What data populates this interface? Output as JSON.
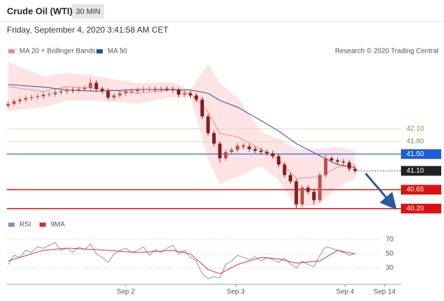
{
  "header": {
    "title": "Crude Oil (WTI)",
    "timeframe": "30 MIN",
    "datetime": "Friday, September 4, 2020 3:41:58 AM CET",
    "source": "Research © 2020 Trading Central"
  },
  "chart_data": [
    {
      "type": "candlestick",
      "ylim": [
        40.08,
        43.77
      ],
      "xlim": [
        -0.2,
        66.8
      ],
      "up_color": "#c0504d",
      "down_color": "#8b1a1a",
      "x": [
        0,
        1,
        2,
        3,
        4,
        5,
        6,
        7,
        8,
        9,
        10,
        11,
        12,
        13,
        14,
        15,
        16,
        17,
        18,
        19,
        20,
        21,
        22,
        23,
        24,
        25,
        26,
        27,
        28,
        29,
        30,
        31,
        32,
        33,
        34,
        35,
        36,
        37,
        38,
        39,
        40,
        41,
        42,
        43,
        44,
        45,
        46,
        47,
        48,
        49,
        50,
        51,
        52,
        53,
        54,
        55,
        56,
        57,
        58,
        59
      ],
      "open": [
        42.65,
        42.7,
        42.76,
        42.8,
        42.84,
        42.86,
        42.88,
        42.92,
        42.93,
        42.97,
        43.0,
        43.03,
        43.02,
        43.05,
        43.08,
        43.2,
        43.05,
        43.0,
        42.85,
        42.9,
        42.95,
        43.0,
        43.0,
        43.03,
        43.05,
        43.05,
        43.04,
        43.06,
        43.05,
        43.03,
        42.92,
        42.95,
        42.9,
        42.8,
        42.4,
        42.0,
        41.75,
        41.4,
        41.55,
        41.6,
        41.7,
        41.68,
        41.62,
        41.58,
        41.55,
        41.52,
        41.45,
        41.25,
        41.0,
        40.85,
        40.3,
        40.7,
        40.6,
        40.4,
        41.0,
        41.4,
        41.35,
        41.32,
        41.3,
        41.15
      ],
      "high": [
        42.76,
        42.82,
        42.86,
        42.9,
        42.92,
        42.94,
        42.98,
        42.99,
        43.03,
        43.06,
        43.09,
        43.09,
        43.11,
        43.14,
        43.3,
        43.26,
        43.11,
        43.06,
        42.96,
        43.01,
        43.06,
        43.06,
        43.09,
        43.11,
        43.11,
        43.11,
        43.12,
        43.12,
        43.11,
        43.09,
        43.01,
        43.01,
        42.96,
        42.86,
        42.46,
        42.06,
        41.81,
        41.61,
        41.66,
        41.76,
        41.76,
        41.74,
        41.68,
        41.64,
        41.61,
        41.58,
        41.51,
        41.31,
        41.06,
        40.91,
        40.76,
        40.76,
        40.66,
        41.06,
        41.5,
        41.46,
        41.41,
        41.38,
        41.36,
        41.21
      ],
      "low": [
        42.59,
        42.64,
        42.7,
        42.74,
        42.78,
        42.8,
        42.82,
        42.86,
        42.87,
        42.91,
        42.94,
        42.96,
        42.96,
        42.99,
        43.02,
        42.99,
        42.94,
        42.79,
        42.79,
        42.84,
        42.89,
        42.94,
        42.94,
        42.97,
        42.99,
        42.98,
        42.98,
        42.99,
        42.97,
        42.86,
        42.86,
        42.84,
        42.74,
        42.34,
        41.94,
        41.69,
        41.3,
        41.34,
        41.49,
        41.54,
        41.62,
        41.56,
        41.52,
        41.49,
        41.46,
        41.39,
        41.19,
        40.94,
        40.79,
        40.2,
        40.24,
        40.54,
        40.3,
        40.34,
        40.94,
        41.29,
        41.26,
        41.24,
        41.09,
        41.04
      ],
      "close": [
        42.7,
        42.76,
        42.8,
        42.84,
        42.86,
        42.88,
        42.92,
        42.93,
        42.97,
        43.0,
        43.03,
        43.02,
        43.05,
        43.08,
        43.2,
        43.05,
        43.0,
        42.85,
        42.9,
        42.95,
        43.0,
        43.0,
        43.03,
        43.05,
        43.05,
        43.04,
        43.06,
        43.05,
        43.03,
        42.92,
        42.95,
        42.9,
        42.8,
        42.4,
        42.0,
        41.75,
        41.4,
        41.55,
        41.6,
        41.7,
        41.68,
        41.62,
        41.58,
        41.55,
        41.52,
        41.45,
        41.25,
        41.0,
        40.85,
        40.3,
        40.7,
        40.6,
        40.4,
        41.0,
        41.4,
        41.35,
        41.32,
        41.3,
        41.15,
        41.1
      ],
      "series": [
        {
          "name": "MA 20 + Bollinger Bands",
          "color": "#f08a8a",
          "band_color": "#fcd9d9",
          "x": [
            0,
            6,
            10,
            15,
            22,
            28,
            31,
            34,
            36,
            39,
            43,
            46,
            49,
            53,
            56,
            59
          ],
          "values": [
            43.11,
            42.99,
            43.11,
            43.07,
            42.95,
            43.04,
            42.95,
            42.51,
            41.99,
            41.91,
            41.62,
            41.37,
            40.92,
            40.96,
            41.19,
            41.24
          ],
          "upper": [
            43.69,
            43.36,
            43.44,
            43.36,
            43.19,
            43.22,
            43.03,
            43.65,
            43.19,
            42.86,
            42.03,
            41.86,
            41.62,
            41.62,
            41.67,
            41.57
          ],
          "lower": [
            42.53,
            42.61,
            42.78,
            42.78,
            42.7,
            42.86,
            42.86,
            41.37,
            40.79,
            40.96,
            41.21,
            40.88,
            40.22,
            40.3,
            40.71,
            40.91
          ]
        },
        {
          "name": "MA 50",
          "color": "#2a4d9b",
          "x": [
            0,
            6,
            10,
            15,
            22,
            28,
            31,
            34,
            36,
            39,
            43,
            46,
            49,
            53,
            56,
            59
          ],
          "values": [
            43.16,
            43.1,
            43.03,
            43.0,
            43.04,
            43.04,
            43.03,
            42.95,
            42.78,
            42.62,
            42.3,
            42.05,
            41.75,
            41.46,
            41.25,
            41.18
          ]
        }
      ],
      "levels": [
        {
          "value": 42.1,
          "label": "42.10",
          "color": "#6b9a2b",
          "line_color": "#d3e0b0",
          "boxed": false,
          "dashed": false
        },
        {
          "value": 41.8,
          "label": "41.80",
          "color": "#6b9a2b",
          "line_color": "#d3e0b0",
          "boxed": false,
          "dashed": false
        },
        {
          "value": 41.5,
          "label": "41.50",
          "color": "#1f5fd6",
          "line_color": "#4a7fe0",
          "boxed": true,
          "dashed": false
        },
        {
          "value": 41.1,
          "label": "41.10",
          "color": "#222222",
          "line_color": "#555555",
          "boxed": true,
          "dashed": true
        },
        {
          "value": 40.65,
          "label": "40.65",
          "color": "#dd1111",
          "line_color": "#dd1111",
          "boxed": true,
          "dashed": false
        },
        {
          "value": 40.2,
          "label": "40.20",
          "color": "#dd1111",
          "line_color": "#dd1111",
          "boxed": true,
          "dashed": false
        }
      ]
    },
    {
      "type": "line",
      "ylim": [
        8,
        97
      ],
      "xlim": [
        -0.2,
        66.8
      ],
      "yticks": [
        70,
        50,
        30
      ],
      "grid": true,
      "xticks": [
        {
          "value": 20,
          "label": "Sep 2"
        },
        {
          "value": 38.7,
          "label": "Sep 3"
        },
        {
          "value": 57.3,
          "label": "Sep 4"
        },
        {
          "value": 64,
          "label": "Sep 14"
        }
      ],
      "series": [
        {
          "name": "RSI",
          "color": "#7a93c8",
          "x": [
            0,
            1,
            2,
            3,
            4,
            5,
            6,
            7,
            8,
            9,
            10,
            11,
            12,
            13,
            14,
            15,
            16,
            17,
            18,
            19,
            20,
            21,
            22,
            23,
            24,
            25,
            26,
            27,
            28,
            29,
            30,
            31,
            32,
            33,
            34,
            35,
            36,
            37,
            38,
            39,
            40,
            41,
            42,
            43,
            44,
            45,
            46,
            47,
            48,
            49,
            50,
            51,
            52,
            53,
            54,
            55,
            56,
            57,
            58,
            59
          ],
          "values": [
            35,
            48,
            45,
            55,
            52,
            60,
            58,
            62,
            66,
            55,
            58,
            52,
            60,
            56,
            64,
            50,
            45,
            38,
            50,
            55,
            58,
            52,
            55,
            60,
            48,
            56,
            52,
            58,
            62,
            50,
            55,
            45,
            40,
            22,
            15,
            18,
            16,
            35,
            40,
            48,
            45,
            42,
            46,
            40,
            45,
            42,
            38,
            44,
            36,
            30,
            40,
            35,
            32,
            48,
            60,
            58,
            55,
            52,
            48,
            50
          ]
        },
        {
          "name": "9MA",
          "color": "#d93030",
          "x": [
            0,
            6,
            10,
            15,
            22,
            28,
            31,
            34,
            36,
            39,
            43,
            46,
            49,
            53,
            56,
            59
          ],
          "values": [
            40,
            55,
            58,
            56,
            52,
            55,
            50,
            28,
            22,
            35,
            45,
            43,
            37,
            40,
            55,
            50
          ]
        }
      ]
    }
  ]
}
